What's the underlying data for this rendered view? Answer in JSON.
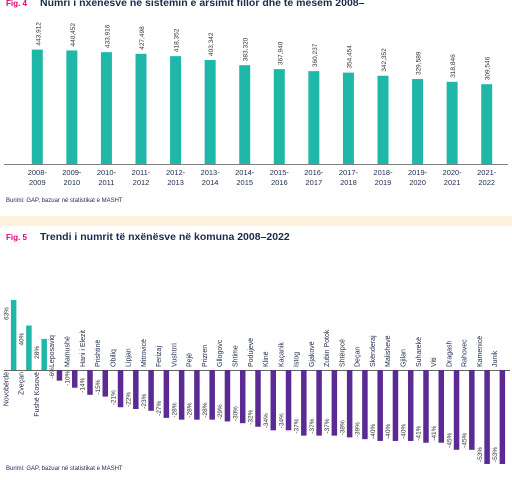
{
  "colors": {
    "teal": "#1fb7a8",
    "purple": "#5b2b93",
    "fig_label": "#e0007a",
    "title": "#1d2a4d",
    "background_strip": "#fdf3dc"
  },
  "fig4": {
    "label": "Fig. 4",
    "title": "Numri i nxënësve në sistemin e arsimit fillor dhe të mesëm 2008–",
    "source": "Burimi: GAP, bazuar në statistikat e MASHT"
  },
  "fig5": {
    "label": "Fig. 5",
    "title": "Trendi i numrit të nxënësve në komuna 2008–2022",
    "source": "Burimi: GAP, bazuar në statistikat e MASHT"
  },
  "chart_data": [
    {
      "type": "bar",
      "categories": [
        "2008-2009",
        "2009-2010",
        "2010-2011",
        "2011-2012",
        "2012-2013",
        "2013-2014",
        "2014-2015",
        "2015-2016",
        "2016-2017",
        "2017-2018",
        "2018-2019",
        "2019-2020",
        "2020-2021",
        "2021-2022"
      ],
      "values": [
        443912,
        440452,
        433916,
        427498,
        418352,
        403342,
        383320,
        367940,
        360237,
        354454,
        342352,
        329589,
        318846,
        309546
      ],
      "value_labels": [
        "443,912",
        "440,452",
        "433,916",
        "427,498",
        "418,352",
        "403,342",
        "383,320",
        "367,940",
        "360,237",
        "354,454",
        "342,352",
        "329,589",
        "318,846",
        "309,546"
      ],
      "title": "Numri i nxënësve në sistemin e arsimit fillor dhe të mesëm 2008–",
      "xlabel": "",
      "ylabel": "",
      "ylim": [
        0,
        450000
      ],
      "grid": false
    },
    {
      "type": "bar",
      "categories": [
        "Novobërdë",
        "Zveçan",
        "Fushë Kosovë",
        "Leposaviq",
        "Mamushë",
        "Hani i Elezit",
        "Prishtinë",
        "Obiliq",
        "Lipjan",
        "Mitrovicë",
        "Ferizaj",
        "Vushtrri",
        "Pejë",
        "Prizren",
        "Gllogovc",
        "Shtime",
        "Podujevë",
        "Klinë",
        "Kaçanik",
        "Istog",
        "Gjakovë",
        "Zubin Potok",
        "Shtërpcë",
        "Deçan",
        "Skënderaj",
        "Malishevë",
        "Gjilan",
        "Suharekë",
        "Viti",
        "Dragash",
        "Rahovec",
        "Kamenicë",
        "Junik"
      ],
      "values": [
        63,
        40,
        28,
        -6,
        -10,
        -14,
        -15,
        -21,
        -22,
        -23,
        -27,
        -28,
        -28,
        -28,
        -29,
        -30,
        -32,
        -34,
        -34,
        -37,
        -37,
        -37,
        -38,
        -39,
        -40,
        -40,
        -40,
        -41,
        -41,
        -45,
        -45,
        -53,
        -53
      ],
      "value_labels": [
        "63%",
        "40%",
        "28%",
        "-6%",
        "-10%",
        "-14%",
        "-15%",
        "-21%",
        "-22%",
        "-23%",
        "-27%",
        "-28%",
        "-28%",
        "-28%",
        "-29%",
        "-30%",
        "-32%",
        "-34%",
        "-34%",
        "-37%",
        "-37%",
        "-37%",
        "-38%",
        "-39%",
        "-40%",
        "-40%",
        "-40%",
        "-41%",
        "-41%",
        "-45%",
        "-45%",
        "-53%",
        "-53%"
      ],
      "title": "Trendi i numrit të nxënësve në komuna 2008–2022",
      "xlabel": "",
      "ylabel": "",
      "ylim": [
        -55,
        65
      ],
      "grid": false
    }
  ]
}
